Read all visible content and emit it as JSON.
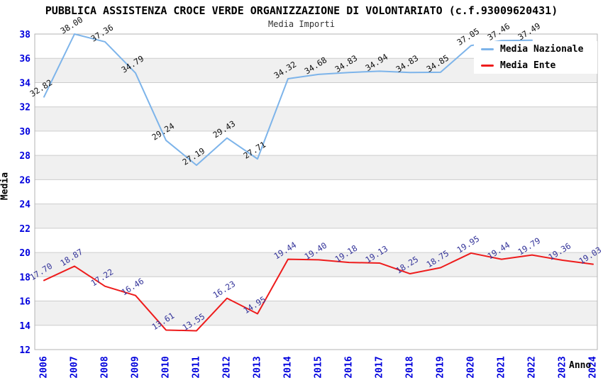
{
  "chart_data": {
    "type": "line",
    "title": "PUBBLICA ASSISTENZA CROCE VERDE ORGANIZZAZIONE DI VOLONTARIATO (c.f.93009620431)",
    "subtitle": "Media Importi",
    "xlabel": "Anno",
    "ylabel": "Media",
    "x": [
      2006,
      2007,
      2008,
      2009,
      2010,
      2011,
      2012,
      2013,
      2014,
      2015,
      2016,
      2017,
      2018,
      2019,
      2020,
      2021,
      2022,
      2023,
      2024
    ],
    "ylim": [
      12,
      38
    ],
    "ytick_step": 2,
    "grid": "on",
    "legend_position": "top-right-inside",
    "series": [
      {
        "name": "Media Nazionale",
        "color": "#7db4ea",
        "label_color": "#111111",
        "values": [
          32.82,
          38.0,
          37.36,
          34.79,
          29.24,
          27.19,
          29.43,
          27.71,
          34.32,
          34.68,
          34.83,
          34.94,
          34.83,
          34.85,
          37.05,
          37.46,
          37.49,
          null,
          null
        ]
      },
      {
        "name": "Media Ente",
        "color": "#ee1c1c",
        "label_color": "#333399",
        "values": [
          17.7,
          18.87,
          17.22,
          16.46,
          13.61,
          13.55,
          16.23,
          14.95,
          19.44,
          19.4,
          19.18,
          19.13,
          18.25,
          18.75,
          19.95,
          19.44,
          19.79,
          19.36,
          19.03
        ]
      }
    ],
    "colors": {
      "band": "#f0f0f0",
      "gridline": "#cccccc",
      "plot_border": "#b3b3b3",
      "tick_label": "#0000dd"
    }
  }
}
